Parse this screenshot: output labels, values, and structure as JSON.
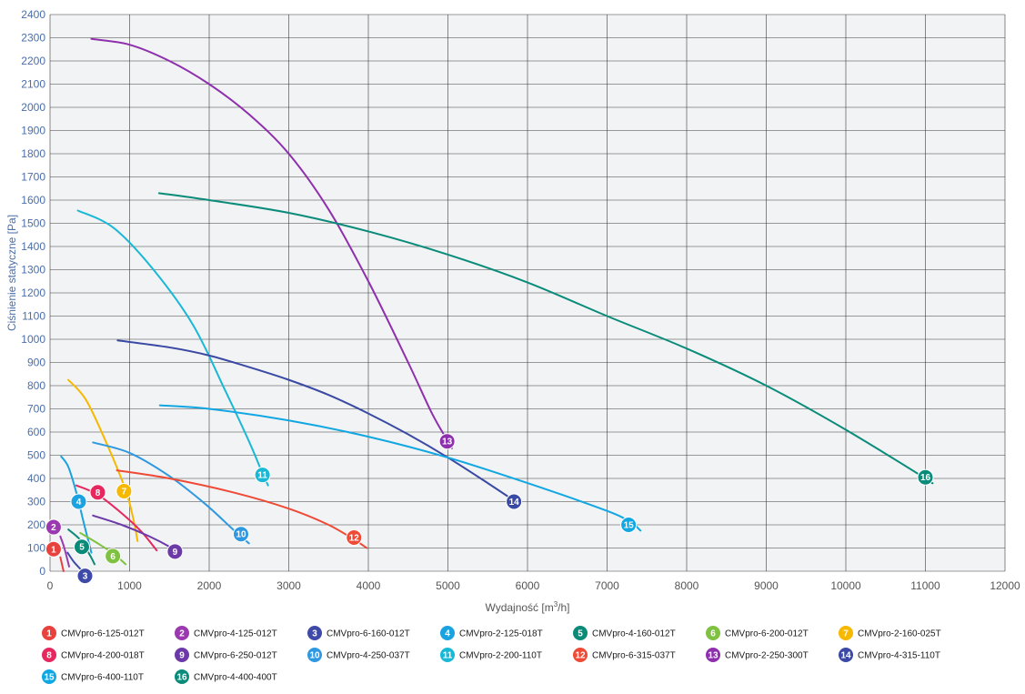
{
  "chart_data": {
    "type": "line",
    "xlabel": "Wydajność [m³/h]",
    "ylabel": "Ciśnienie statyczne [Pa]",
    "xlim": [
      0,
      12000
    ],
    "ylim": [
      0,
      2400
    ],
    "xticks": [
      0,
      1000,
      2000,
      3000,
      4000,
      5000,
      6000,
      7000,
      8000,
      9000,
      10000,
      11000,
      12000
    ],
    "yticks": [
      0,
      100,
      200,
      300,
      400,
      500,
      600,
      700,
      800,
      900,
      1000,
      1100,
      1200,
      1300,
      1400,
      1500,
      1600,
      1700,
      1800,
      1900,
      2000,
      2100,
      2200,
      2300,
      2400
    ],
    "grid": true,
    "series": [
      {
        "num": "1",
        "name": "CMVpro-6-125-012T",
        "color": "#e8423f",
        "points": [
          [
            130,
            60
          ],
          [
            170,
            0
          ]
        ],
        "label_at": [
          45,
          95
        ]
      },
      {
        "num": "2",
        "name": "CMVpro-4-125-012T",
        "color": "#9b3ab0",
        "points": [
          [
            130,
            150
          ],
          [
            180,
            100
          ],
          [
            240,
            20
          ]
        ],
        "label_at": [
          45,
          190
        ]
      },
      {
        "num": "3",
        "name": "CMVpro-6-160-012T",
        "color": "#3f4aa8",
        "points": [
          [
            220,
            80
          ],
          [
            300,
            40
          ],
          [
            380,
            10
          ]
        ],
        "label_at": [
          440,
          -20
        ]
      },
      {
        "num": "4",
        "name": "CMVpro-2-125-018T",
        "color": "#1aa3e0",
        "points": [
          [
            140,
            495
          ],
          [
            230,
            450
          ],
          [
            330,
            340
          ],
          [
            430,
            200
          ],
          [
            520,
            80
          ]
        ],
        "label_at": [
          360,
          300
        ]
      },
      {
        "num": "5",
        "name": "CMVpro-4-160-012T",
        "color": "#0b8a77",
        "points": [
          [
            230,
            180
          ],
          [
            380,
            135
          ],
          [
            500,
            70
          ],
          [
            560,
            30
          ]
        ],
        "label_at": [
          400,
          105
        ]
      },
      {
        "num": "6",
        "name": "CMVpro-6-200-012T",
        "color": "#7fc241",
        "points": [
          [
            380,
            165
          ],
          [
            600,
            120
          ],
          [
            800,
            75
          ],
          [
            950,
            30
          ]
        ],
        "label_at": [
          790,
          65
        ]
      },
      {
        "num": "7",
        "name": "CMVpro-2-160-025T",
        "color": "#f7b800",
        "points": [
          [
            230,
            825
          ],
          [
            450,
            740
          ],
          [
            700,
            560
          ],
          [
            950,
            350
          ],
          [
            1050,
            220
          ],
          [
            1100,
            130
          ]
        ],
        "label_at": [
          930,
          345
        ]
      },
      {
        "num": "8",
        "name": "CMVpro-4-200-018T",
        "color": "#e6285f",
        "points": [
          [
            330,
            370
          ],
          [
            600,
            330
          ],
          [
            900,
            250
          ],
          [
            1150,
            170
          ],
          [
            1340,
            90
          ]
        ],
        "label_at": [
          600,
          340
        ]
      },
      {
        "num": "9",
        "name": "CMVpro-6-250-012T",
        "color": "#6b3aa8",
        "points": [
          [
            540,
            240
          ],
          [
            900,
            200
          ],
          [
            1250,
            150
          ],
          [
            1530,
            100
          ],
          [
            1650,
            70
          ]
        ],
        "label_at": [
          1570,
          85
        ]
      },
      {
        "num": "10",
        "name": "CMVpro-4-250-037T",
        "color": "#2e98e0",
        "points": [
          [
            540,
            555
          ],
          [
            1000,
            510
          ],
          [
            1500,
            410
          ],
          [
            1950,
            290
          ],
          [
            2300,
            180
          ],
          [
            2500,
            120
          ]
        ],
        "label_at": [
          2400,
          160
        ]
      },
      {
        "num": "11",
        "name": "CMVpro-2-200-110T",
        "color": "#19b8d6",
        "points": [
          [
            350,
            1555
          ],
          [
            800,
            1480
          ],
          [
            1300,
            1300
          ],
          [
            1800,
            1060
          ],
          [
            2200,
            780
          ],
          [
            2500,
            560
          ],
          [
            2660,
            430
          ],
          [
            2740,
            370
          ]
        ],
        "label_at": [
          2670,
          415
        ]
      },
      {
        "num": "12",
        "name": "CMVpro-6-315-037T",
        "color": "#ee4a36",
        "points": [
          [
            840,
            435
          ],
          [
            1500,
            400
          ],
          [
            2300,
            340
          ],
          [
            3000,
            270
          ],
          [
            3500,
            200
          ],
          [
            3850,
            130
          ],
          [
            3980,
            100
          ]
        ],
        "label_at": [
          3820,
          145
        ]
      },
      {
        "num": "13",
        "name": "CMVpro-2-250-300T",
        "color": "#8e2fad",
        "points": [
          [
            520,
            2295
          ],
          [
            1000,
            2270
          ],
          [
            1500,
            2200
          ],
          [
            2000,
            2100
          ],
          [
            2500,
            1970
          ],
          [
            3000,
            1800
          ],
          [
            3500,
            1560
          ],
          [
            4000,
            1250
          ],
          [
            4500,
            900
          ],
          [
            4800,
            680
          ],
          [
            5000,
            560
          ],
          [
            5050,
            530
          ]
        ],
        "label_at": [
          4990,
          560
        ]
      },
      {
        "num": "14",
        "name": "CMVpro-4-315-110T",
        "color": "#3a4aa4",
        "points": [
          [
            850,
            995
          ],
          [
            1500,
            965
          ],
          [
            2000,
            930
          ],
          [
            2500,
            880
          ],
          [
            3000,
            825
          ],
          [
            3500,
            760
          ],
          [
            4000,
            680
          ],
          [
            4500,
            590
          ],
          [
            5000,
            490
          ],
          [
            5500,
            380
          ],
          [
            5850,
            300
          ]
        ],
        "label_at": [
          5830,
          300
        ]
      },
      {
        "num": "15",
        "name": "CMVpro-6-400-110T",
        "color": "#11a7e3",
        "points": [
          [
            1380,
            715
          ],
          [
            2000,
            700
          ],
          [
            3000,
            650
          ],
          [
            4000,
            580
          ],
          [
            5000,
            490
          ],
          [
            6000,
            380
          ],
          [
            7000,
            260
          ],
          [
            7300,
            210
          ],
          [
            7420,
            175
          ]
        ],
        "label_at": [
          7270,
          200
        ]
      },
      {
        "num": "16",
        "name": "CMVpro-4-400-400T",
        "color": "#0b8c7a",
        "points": [
          [
            1370,
            1630
          ],
          [
            2000,
            1600
          ],
          [
            3000,
            1545
          ],
          [
            4000,
            1465
          ],
          [
            5000,
            1365
          ],
          [
            6000,
            1245
          ],
          [
            7000,
            1100
          ],
          [
            8000,
            960
          ],
          [
            9000,
            800
          ],
          [
            10000,
            610
          ],
          [
            11000,
            400
          ],
          [
            11050,
            385
          ]
        ],
        "label_at": [
          11000,
          405
        ]
      }
    ]
  }
}
